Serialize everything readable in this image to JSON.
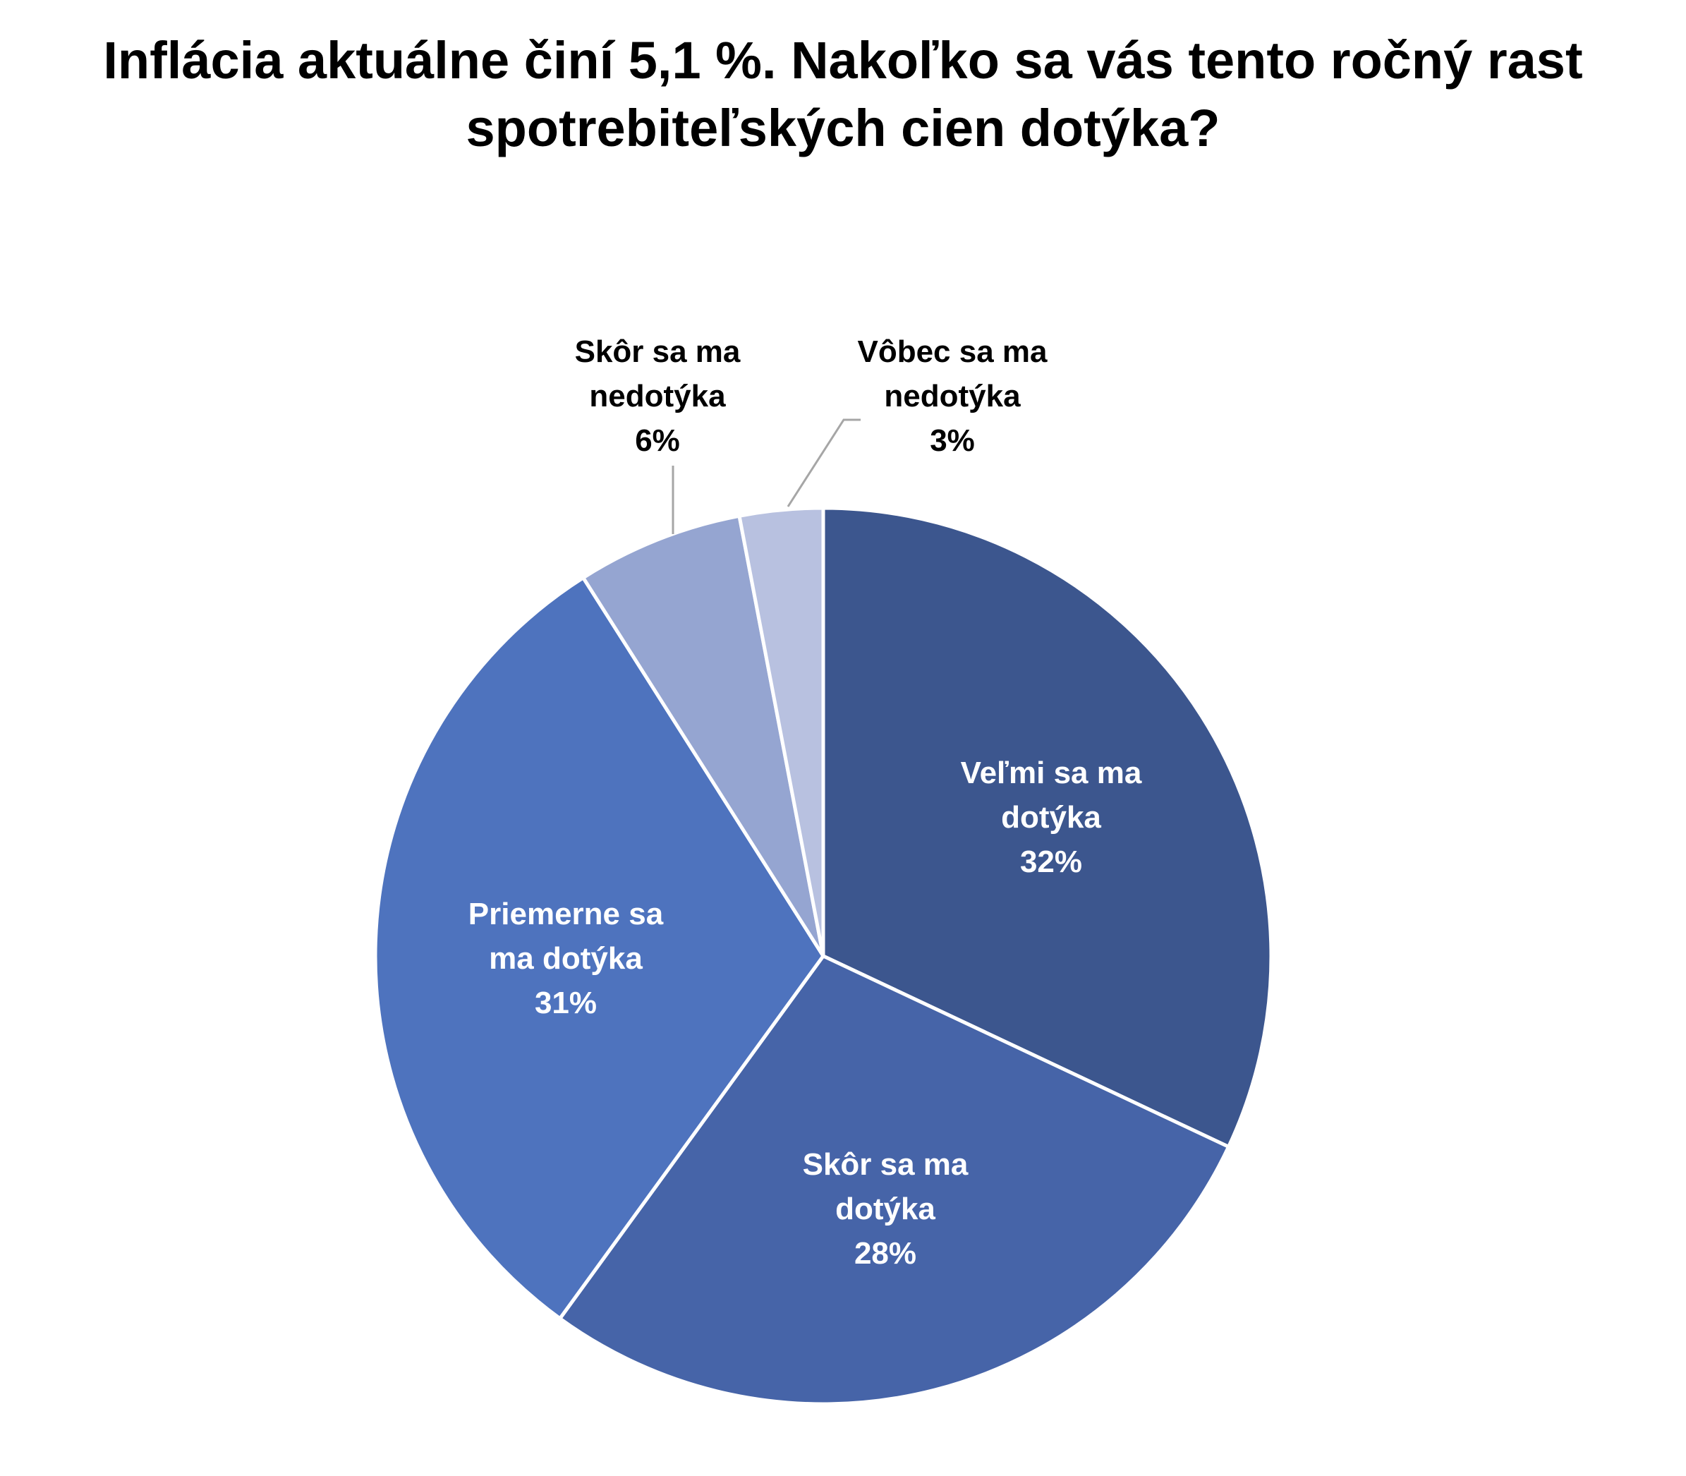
{
  "chart_data": {
    "type": "pie",
    "title": "Inflácia aktuálne činí 5,1 %. Nakoľko sa vás tento ročný rast spotrebiteľských cien dotýka?",
    "title_lines": [
      "Inflácia aktuálne činí 5,1 %. Nakoľko sa vás tento ročný rast",
      "spotrebiteľských cien dotýka?"
    ],
    "legend": "none",
    "start_angle_deg": 0,
    "direction": "clockwise",
    "slices": [
      {
        "name": "Veľmi sa ma dotýka",
        "label_lines": [
          "Veľmi sa ma",
          "dotýka"
        ],
        "value": 32,
        "value_label": "32%",
        "color": "#3C568E",
        "label_color": "#ffffff",
        "label_position": "inside"
      },
      {
        "name": "Skôr sa ma dotýka",
        "label_lines": [
          "Skôr sa ma",
          "dotýka"
        ],
        "value": 28,
        "value_label": "28%",
        "color": "#4664A8",
        "label_color": "#ffffff",
        "label_position": "inside"
      },
      {
        "name": "Priemerne sa ma dotýka",
        "label_lines": [
          "Priemerne sa",
          "ma dotýka"
        ],
        "value": 31,
        "value_label": "31%",
        "color": "#4E73BE",
        "label_color": "#ffffff",
        "label_position": "inside"
      },
      {
        "name": "Skôr sa ma nedotýka",
        "label_lines": [
          "Skôr sa ma",
          "nedotýka"
        ],
        "value": 6,
        "value_label": "6%",
        "color": "#95A5D1",
        "label_color": "#000000",
        "label_position": "outside"
      },
      {
        "name": "Vôbec sa ma nedotýka",
        "label_lines": [
          "Vôbec sa ma",
          "nedotýka"
        ],
        "value": 3,
        "value_label": "3%",
        "color": "#B8C1E0",
        "label_color": "#000000",
        "label_position": "outside"
      }
    ]
  }
}
